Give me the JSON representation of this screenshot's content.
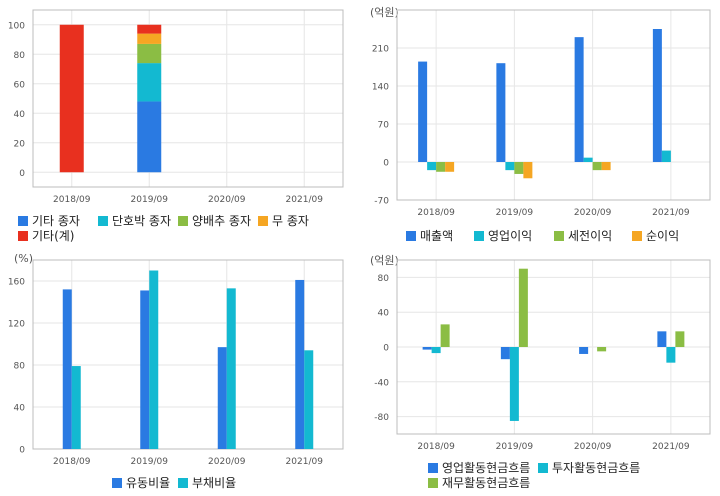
{
  "colors": {
    "blue": "#2a7ae2",
    "cyan": "#13b9d1",
    "green": "#8bbd44",
    "orange": "#f5a623",
    "red": "#e8301f",
    "grid": "#e6e6e6",
    "frame": "#bcbcbc",
    "tick": "#555555"
  },
  "chart_data": [
    {
      "type": "bar",
      "stacked": true,
      "title": "",
      "unit": "",
      "categories": [
        "2018/09",
        "2019/09",
        "2020/09",
        "2021/09"
      ],
      "ylim": [
        -10,
        110
      ],
      "yticks": [
        0,
        20,
        40,
        60,
        80,
        100
      ],
      "grid": true,
      "legend_position": "bottom",
      "series": [
        {
          "name": "기타 종자",
          "color": "blue",
          "values": [
            0,
            48,
            0,
            0
          ]
        },
        {
          "name": "단호박 종자",
          "color": "cyan",
          "values": [
            0,
            26,
            0,
            0
          ]
        },
        {
          "name": "양배추 종자",
          "color": "green",
          "values": [
            0,
            13,
            0,
            0
          ]
        },
        {
          "name": "무 종자",
          "color": "orange",
          "values": [
            0,
            7,
            0,
            0
          ]
        },
        {
          "name": "기타(계)",
          "color": "red",
          "values": [
            100,
            6,
            0,
            0
          ]
        }
      ]
    },
    {
      "type": "bar",
      "title": "",
      "unit": "(억원)",
      "categories": [
        "2018/09",
        "2019/09",
        "2020/09",
        "2021/09"
      ],
      "ylim": [
        -70,
        280
      ],
      "yticks": [
        -70,
        0,
        70,
        140,
        210
      ],
      "grid": true,
      "legend_position": "bottom",
      "series": [
        {
          "name": "매출액",
          "color": "blue",
          "values": [
            185,
            182,
            230,
            245
          ]
        },
        {
          "name": "영업이익",
          "color": "cyan",
          "values": [
            -15,
            -15,
            8,
            21
          ]
        },
        {
          "name": "세전이익",
          "color": "green",
          "values": [
            -18,
            -22,
            -15,
            0
          ]
        },
        {
          "name": "순이익",
          "color": "orange",
          "values": [
            -18,
            -30,
            -15,
            0
          ]
        }
      ]
    },
    {
      "type": "bar",
      "title": "",
      "unit": "(%)",
      "categories": [
        "2018/09",
        "2019/09",
        "2020/09",
        "2021/09"
      ],
      "ylim": [
        0,
        180
      ],
      "yticks": [
        0,
        40,
        80,
        120,
        160
      ],
      "grid": true,
      "legend_position": "bottom",
      "series": [
        {
          "name": "유동비율",
          "color": "blue",
          "values": [
            152,
            151,
            97,
            161
          ]
        },
        {
          "name": "부채비율",
          "color": "cyan",
          "values": [
            79,
            170,
            153,
            94
          ]
        }
      ]
    },
    {
      "type": "bar",
      "title": "",
      "unit": "(억원)",
      "categories": [
        "2018/09",
        "2019/09",
        "2020/09",
        "2021/09"
      ],
      "ylim": [
        -100,
        100
      ],
      "yticks": [
        -80,
        -40,
        0,
        40,
        80
      ],
      "grid": true,
      "legend_position": "bottom",
      "series": [
        {
          "name": "영업활동현금흐름",
          "color": "blue",
          "values": [
            -3,
            -14,
            -8,
            18
          ]
        },
        {
          "name": "투자활동현금흐름",
          "color": "cyan",
          "values": [
            -7,
            -85,
            0,
            -18
          ]
        },
        {
          "name": "재무활동현금흐름",
          "color": "green",
          "values": [
            26,
            90,
            -5,
            18
          ]
        }
      ]
    }
  ]
}
